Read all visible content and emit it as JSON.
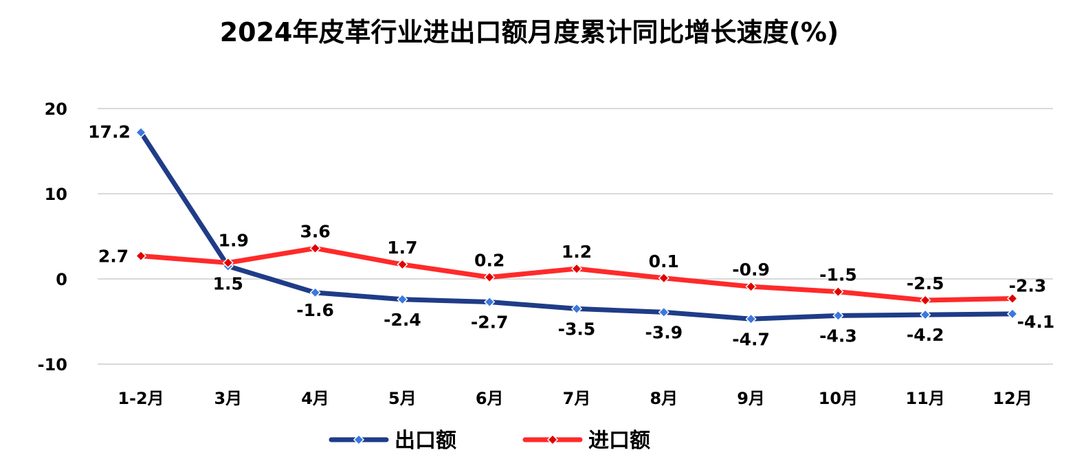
{
  "chart_data": {
    "type": "line",
    "title": "2024年皮革行业进出口额月度累计同比增长速度(%)",
    "categories": [
      "1-2月",
      "3月",
      "4月",
      "5月",
      "6月",
      "7月",
      "8月",
      "9月",
      "10月",
      "11月",
      "12月"
    ],
    "ylim": [
      -10,
      20
    ],
    "yticks": [
      -10,
      0,
      10,
      20
    ],
    "grid": true,
    "legend_position": "bottom",
    "series": [
      {
        "name": "出口额",
        "color": "#1f3c88",
        "marker_color": "#3a78e0",
        "values": [
          17.2,
          1.5,
          -1.6,
          -2.4,
          -2.7,
          -3.5,
          -3.9,
          -4.7,
          -4.3,
          -4.2,
          -4.1
        ]
      },
      {
        "name": "进口额",
        "color": "#ff2a2a",
        "marker_color": "#e00000",
        "values": [
          2.7,
          1.9,
          3.6,
          1.7,
          0.2,
          1.2,
          0.1,
          -0.9,
          -1.5,
          -2.5,
          -2.3
        ]
      }
    ]
  }
}
